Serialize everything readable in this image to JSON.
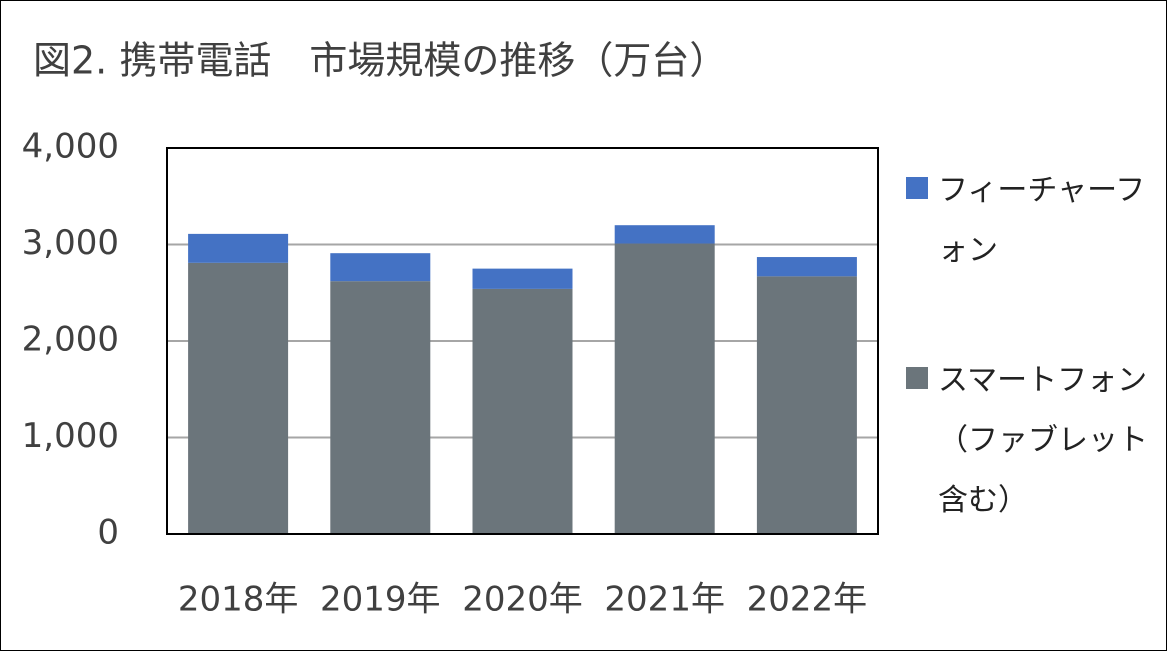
{
  "chart_data": {
    "type": "stacked_bar",
    "title": "図2. 携帯電話　市場規模の推移（万台）",
    "categories": [
      "2018年",
      "2019年",
      "2020年",
      "2021年",
      "2022年"
    ],
    "series": [
      {
        "name": "スマートフォン（ファブレット含む）",
        "color": "#6b757b",
        "values": [
          2810,
          2620,
          2540,
          3010,
          2670
        ]
      },
      {
        "name": "フィーチャーフォン",
        "color": "#4472c4",
        "values": [
          300,
          290,
          210,
          190,
          200
        ]
      }
    ],
    "ylim": [
      0,
      4000
    ],
    "yticks": [
      0,
      {
        "value": 1000,
        "label": "1,000"
      },
      {
        "value": 2000,
        "label": "2,000"
      },
      {
        "value": 3000,
        "label": "3,000"
      },
      {
        "value": 4000,
        "label": "4,000"
      }
    ],
    "grid": true
  }
}
